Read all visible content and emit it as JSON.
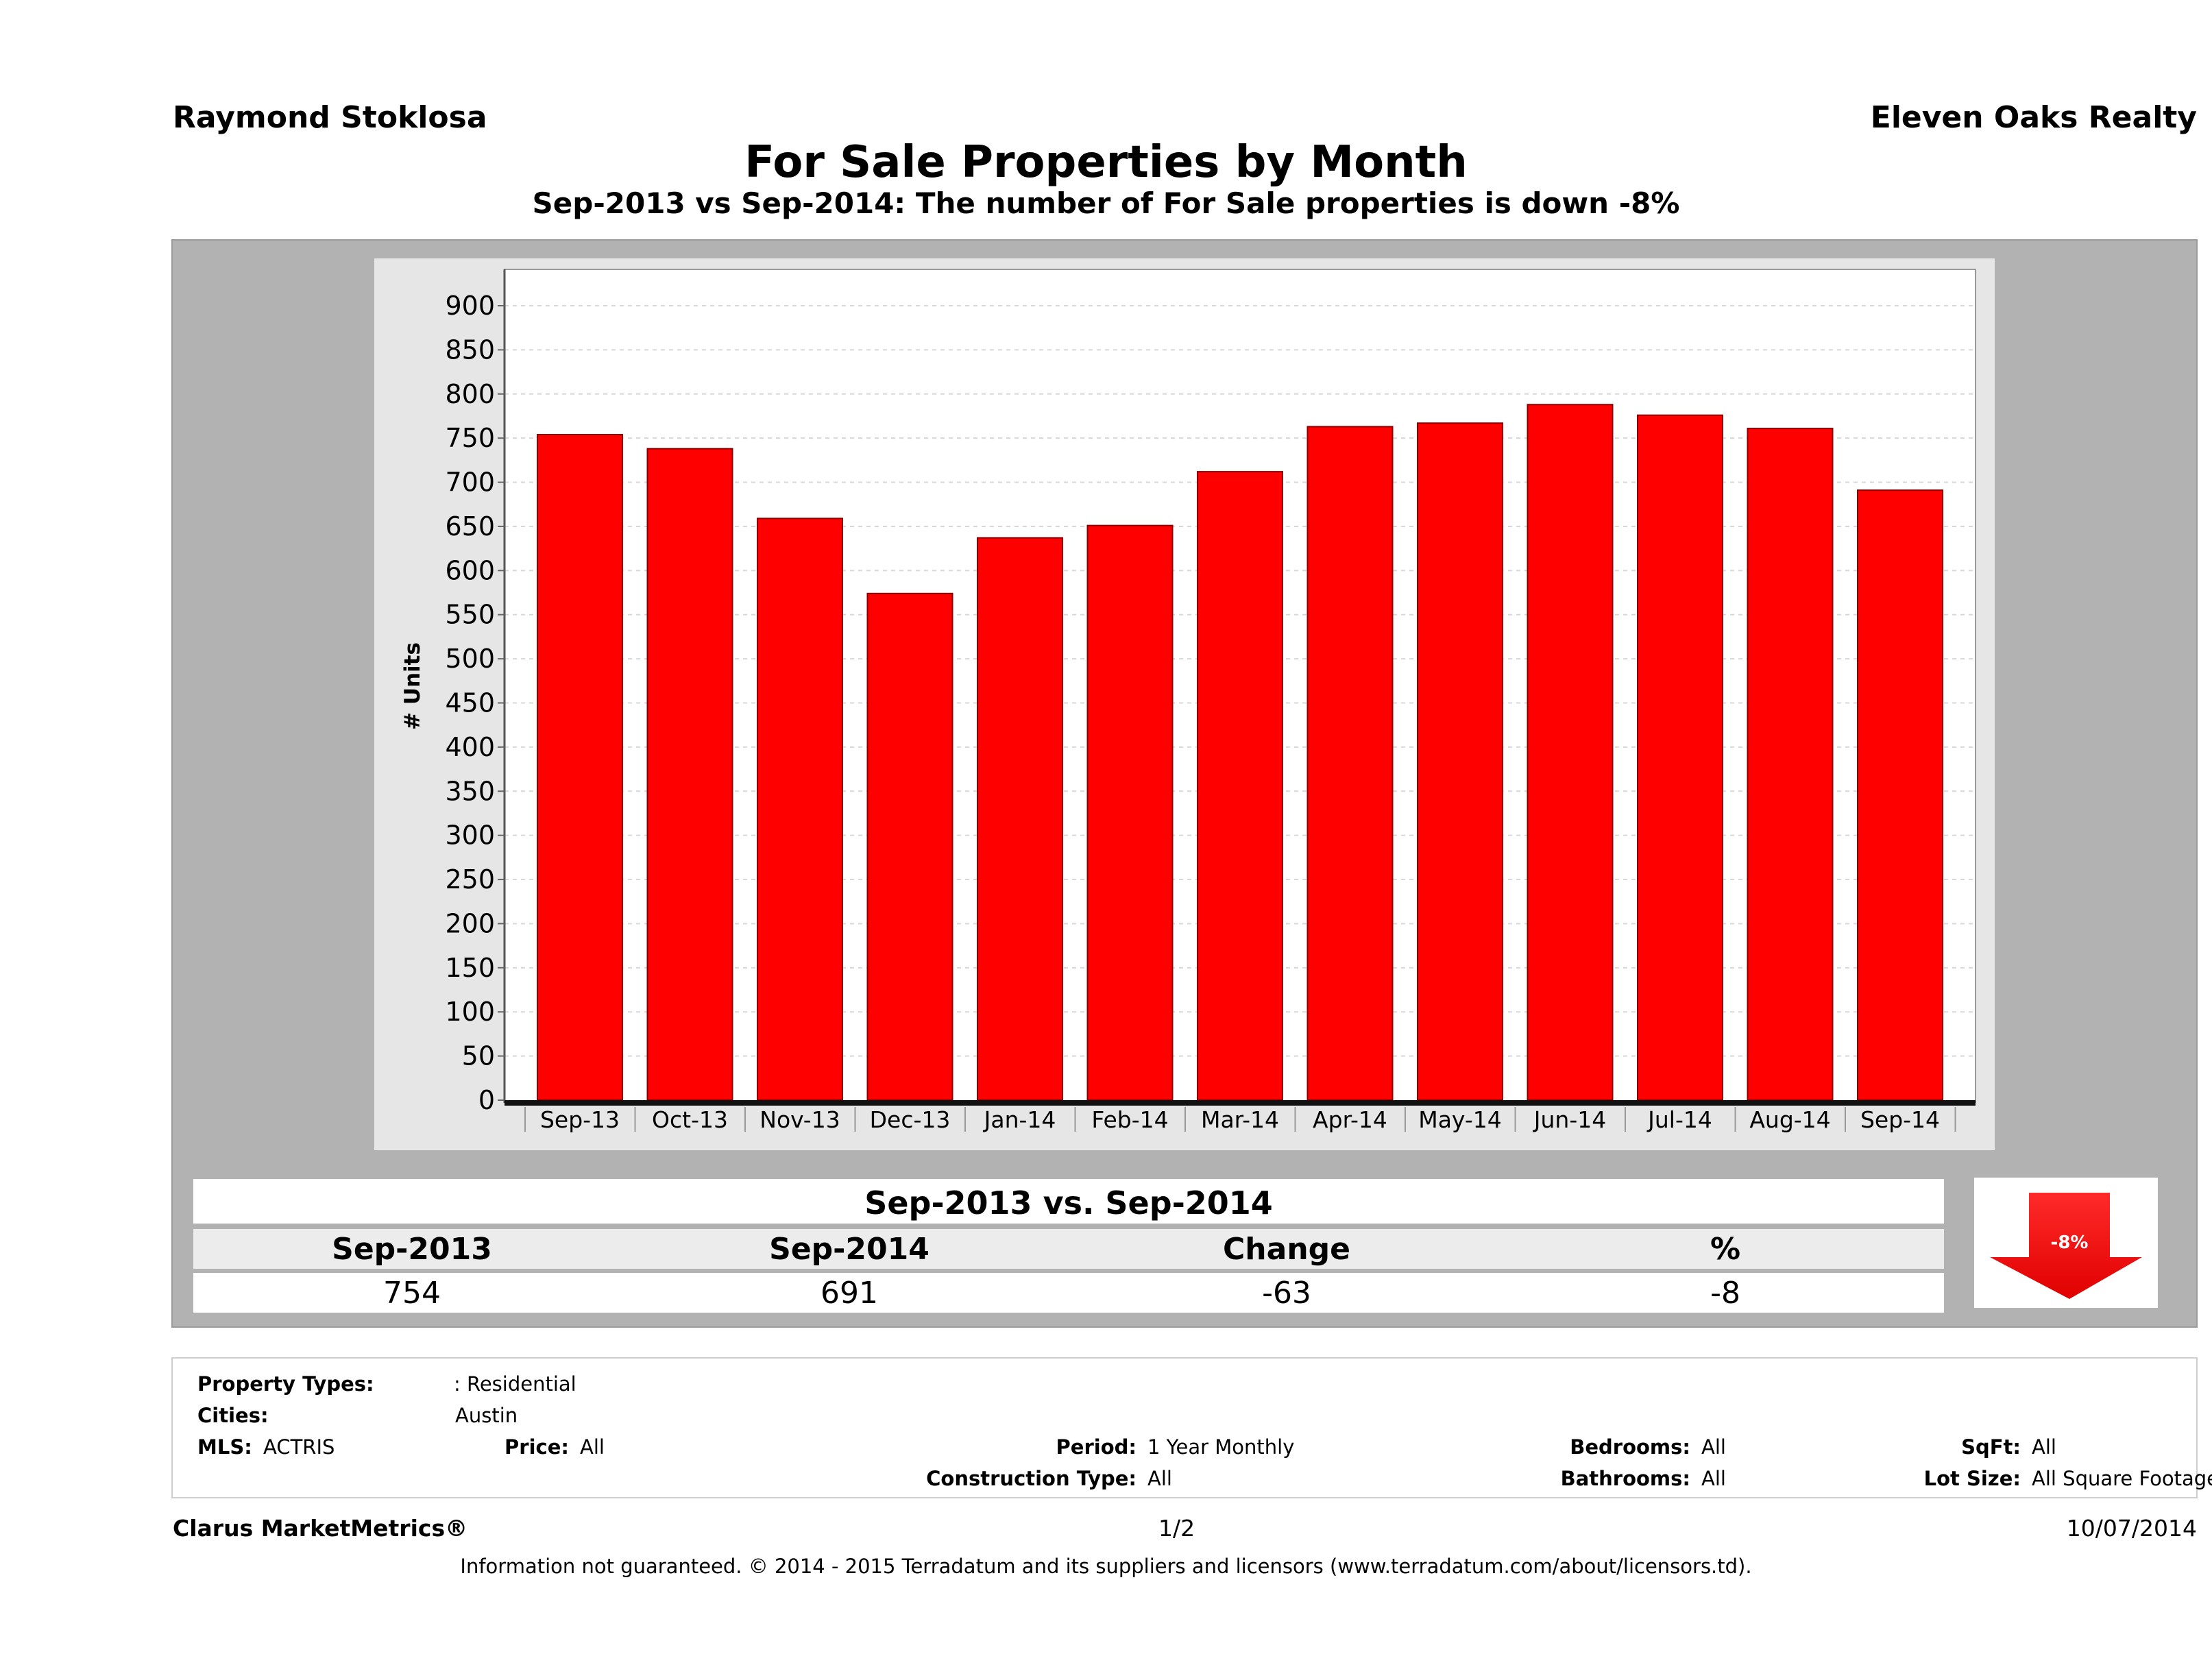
{
  "header": {
    "agent_name": "Raymond Stoklosa",
    "company": "Eleven Oaks Realty",
    "title": "For Sale Properties by Month",
    "subtitle": "Sep-2013 vs Sep-2014: The number of For Sale  properties is down -8%"
  },
  "chart_data": {
    "type": "bar",
    "categories": [
      "Sep-13",
      "Oct-13",
      "Nov-13",
      "Dec-13",
      "Jan-14",
      "Feb-14",
      "Mar-14",
      "Apr-14",
      "May-14",
      "Jun-14",
      "Jul-14",
      "Aug-14",
      "Sep-14"
    ],
    "values": [
      754,
      738,
      659,
      574,
      637,
      651,
      712,
      763,
      767,
      788,
      776,
      761,
      691
    ],
    "ylabel": "# Units",
    "ylim": [
      0,
      900
    ],
    "yticks": [
      0,
      50,
      100,
      150,
      200,
      250,
      300,
      350,
      400,
      450,
      500,
      550,
      600,
      650,
      700,
      750,
      800,
      850,
      900
    ],
    "bar_color": "#ff0000",
    "grid": true
  },
  "summary": {
    "title": "Sep-2013 vs. Sep-2014",
    "headers": [
      "Sep-2013",
      "Sep-2014",
      "Change",
      "%"
    ],
    "values": [
      "754",
      "691",
      "-63",
      "-8"
    ],
    "arrow_label": "-8%",
    "arrow_direction": "down",
    "arrow_color": "#ff0000"
  },
  "filters": {
    "property_types_label": "Property Types:",
    "property_types_value": ": Residential",
    "cities_label": "Cities:",
    "cities_value": "Austin",
    "mls_label": "MLS:",
    "mls_value": "ACTRIS",
    "price_label": "Price:",
    "price_value": "All",
    "period_label": "Period:",
    "period_value": "1 Year Monthly",
    "construction_label": "Construction Type:",
    "construction_value": "All",
    "bedrooms_label": "Bedrooms:",
    "bedrooms_value": "All",
    "bathrooms_label": "Bathrooms:",
    "bathrooms_value": "All",
    "sqft_label": "SqFt:",
    "sqft_value": "All",
    "lotsize_label": "Lot Size:",
    "lotsize_value": "All Square Footage"
  },
  "footer": {
    "brand": "Clarus MarketMetrics®",
    "page": "1/2",
    "date": "10/07/2014",
    "disclaimer": "Information not guaranteed. © 2014 - 2015 Terradatum and its suppliers and licensors (www.terradatum.com/about/licensors.td)."
  }
}
